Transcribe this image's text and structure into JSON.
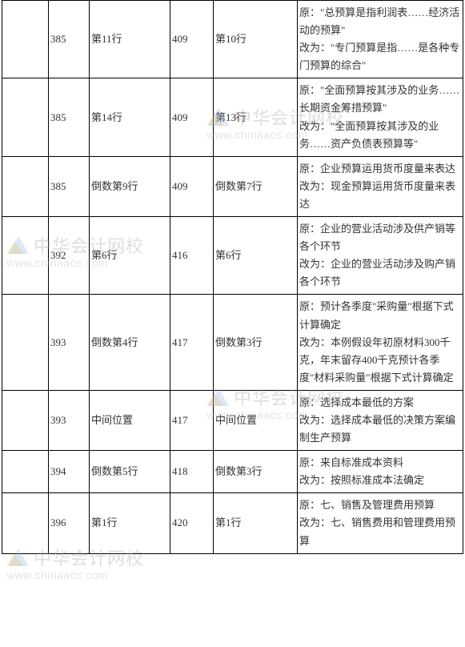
{
  "watermark": {
    "cn": "中华会计网校",
    "en": "www.chinaacc.com"
  },
  "columns": [
    "",
    "",
    "",
    "",
    "",
    ""
  ],
  "rows": [
    {
      "c1": "",
      "c2": "385",
      "c3": "第11行",
      "c4": "409",
      "c5": "第10行",
      "c6": "原：\"总预算是指利润表……经济活动的预算\"\n改为：\"专门预算是指……是各种专门预算的综合\""
    },
    {
      "c1": "",
      "c2": "385",
      "c3": "第14行",
      "c4": "409",
      "c5": "第13行",
      "c6": "原：\"全面预算按其涉及的业务……长期资金筹措预算\"\n改为：\"全面预算按其涉及的业务……资产负债表预算等\""
    },
    {
      "c1": "",
      "c2": "385",
      "c3": "倒数第9行",
      "c4": "409",
      "c5": "倒数第7行",
      "c6": "原：企业预算运用货币度量来表达\n改为：现金预算运用货币度量来表达"
    },
    {
      "c1": "",
      "c2": "392",
      "c3": "第6行",
      "c4": "416",
      "c5": "第6行",
      "c6": "原：企业的营业活动涉及供产销等各个环节\n改为：企业的营业活动涉及购产销各个环节"
    },
    {
      "c1": "",
      "c2": "393",
      "c3": "倒数第4行",
      "c4": "417",
      "c5": "倒数第3行",
      "c6": "原：预计各季度\"采购量\"根据下式计算确定\n改为：本例假设年初原材料300千克，年末留存400千克预计各季度\"材料采购量\"根据下式计算确定"
    },
    {
      "c1": "",
      "c2": "393",
      "c3": "中间位置",
      "c4": "417",
      "c5": "中间位置",
      "c6": "原：选择成本最低的方案\n改为：选择成本最低的决策方案编制生产预算"
    },
    {
      "c1": "",
      "c2": "394",
      "c3": "倒数第5行",
      "c4": "418",
      "c5": "倒数第3行",
      "c6": "原：来自标准成本资料\n改为：按照标准成本法确定"
    },
    {
      "c1": "",
      "c2": "396",
      "c3": "第1行",
      "c4": "420",
      "c5": "第1行",
      "c6": "原：七、销售及管理费用预算\n改为：七、销售费用和管理费用预算"
    }
  ]
}
